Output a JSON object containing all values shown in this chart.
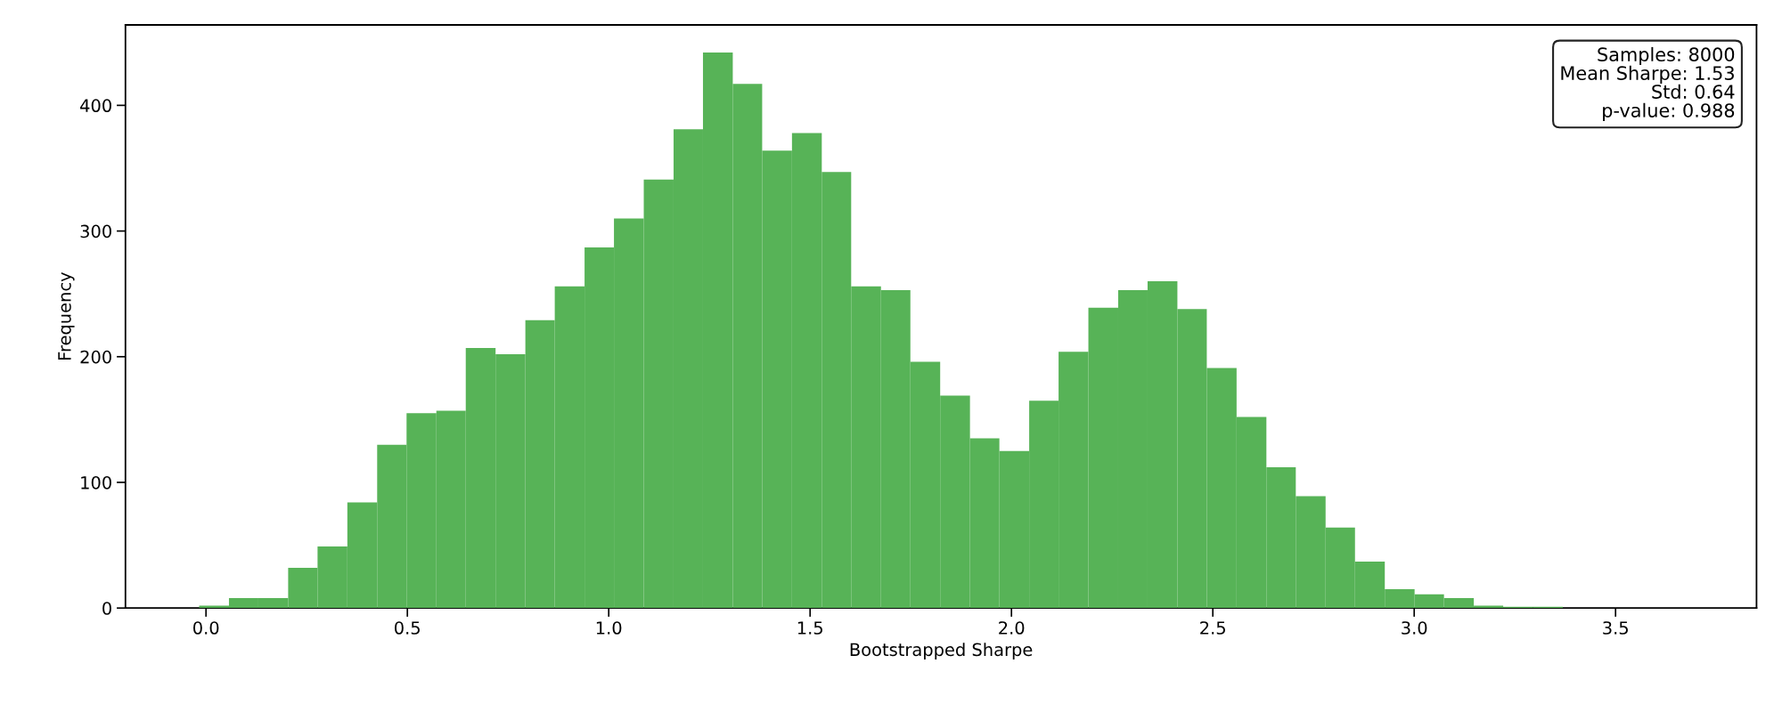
{
  "chart_data": {
    "type": "histogram",
    "xlabel": "Bootstrapped Sharpe",
    "ylabel": "Frequency",
    "color": "#57b357",
    "bins": [
      -0.017,
      0.057,
      0.13,
      0.204,
      0.277,
      0.351,
      0.425,
      0.498,
      0.572,
      0.645,
      0.719,
      0.793,
      0.866,
      0.94,
      1.013,
      1.087,
      1.161,
      1.234,
      1.308,
      1.381,
      1.455,
      1.529,
      1.602,
      1.676,
      1.749,
      1.823,
      1.897,
      1.97,
      2.044,
      2.117,
      2.191,
      2.265,
      2.338,
      2.412,
      2.485,
      2.559,
      2.633,
      2.706,
      2.78,
      2.853,
      2.927,
      3.001,
      3.074,
      3.148,
      3.221,
      3.295,
      3.369,
      3.442,
      3.516,
      3.589,
      3.663
    ],
    "values": [
      2,
      8,
      8,
      32,
      49,
      84,
      130,
      155,
      157,
      207,
      202,
      229,
      256,
      287,
      310,
      341,
      381,
      442,
      417,
      364,
      378,
      347,
      256,
      253,
      196,
      169,
      135,
      125,
      165,
      204,
      239,
      253,
      260,
      238,
      191,
      152,
      112,
      89,
      64,
      37,
      15,
      11,
      8,
      2,
      1,
      1,
      0,
      0,
      0,
      0
    ],
    "xlim": [
      -0.2,
      3.85
    ],
    "ylim": [
      0,
      464
    ],
    "xticks": [
      {
        "value": 0,
        "label": "0.0"
      },
      {
        "value": 0.5,
        "label": "0.5"
      },
      {
        "value": 1,
        "label": "1.0"
      },
      {
        "value": 1.5,
        "label": "1.5"
      },
      {
        "value": 2,
        "label": "2.0"
      },
      {
        "value": 2.5,
        "label": "2.5"
      },
      {
        "value": 3,
        "label": "3.0"
      },
      {
        "value": 3.5,
        "label": "3.5"
      }
    ],
    "yticks": [
      0,
      100,
      200,
      300,
      400
    ],
    "grid": false,
    "annotations": [
      "Samples: 8000\nMean Sharpe: 1.53\nStd: 0.64\np-value: 0.988"
    ]
  }
}
